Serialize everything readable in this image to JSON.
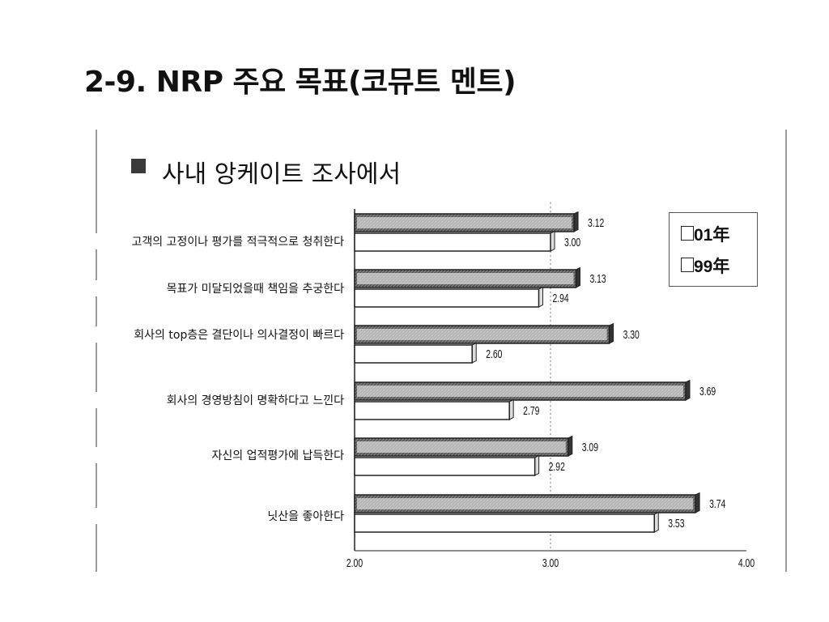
{
  "slide": {
    "title": "2-9. NRP 주요 목표(코뮤트 멘트)",
    "subtitle": "사내 앙케이트 조사에서"
  },
  "colors": {
    "bar_01": "#5a5a5a",
    "bar_99": "#ffffff",
    "bar_edge": "#222222"
  },
  "chart_data": {
    "type": "bar",
    "orientation": "horizontal",
    "categories": [
      "고객의 고정이나 평가를 적극적으로 청취한다",
      "목표가 미달되었을때 책임을 추궁한다",
      "회사의 top층은 결단이나 의사결정이 빠르다",
      "회사의 경영방침이 명확하다고 느낀다",
      "자신의 업적평가에 납득한다",
      "닛산을 좋아한다"
    ],
    "series": [
      {
        "name": "01年",
        "values": [
          3.12,
          3.13,
          3.3,
          3.69,
          3.09,
          3.74
        ]
      },
      {
        "name": "99年",
        "values": [
          3.0,
          2.94,
          2.6,
          2.79,
          2.92,
          3.53
        ]
      }
    ],
    "value_labels": [
      [
        "3.12",
        "3.13",
        "3.30",
        "3.69",
        "3.09",
        "3.74"
      ],
      [
        "3.00",
        "2.94",
        "2.60",
        "2.79",
        "2.92",
        "3.53"
      ]
    ],
    "xlim": [
      2.0,
      4.0
    ],
    "xticks": [
      "2.00",
      "3.00",
      "4.00"
    ],
    "legend": "top-right",
    "grid": false
  }
}
